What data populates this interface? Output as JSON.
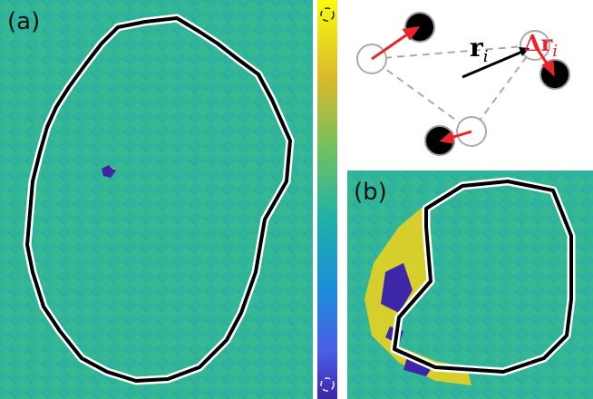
{
  "panels": {
    "a": {
      "label": "(a)"
    },
    "b": {
      "label": "(b)"
    }
  },
  "diagram": {
    "position_vector": {
      "symbol": "r",
      "subscript": "i"
    },
    "displacement_vector": {
      "symbol": "Δr",
      "subscript": "i"
    }
  }
}
